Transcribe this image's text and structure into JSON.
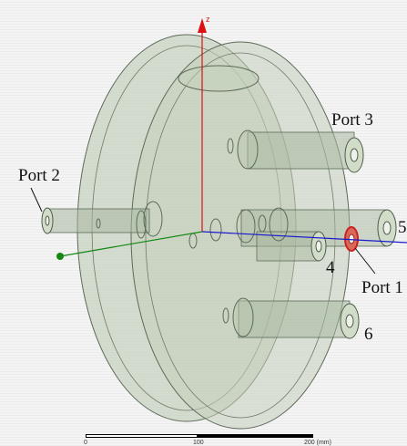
{
  "viewport": {
    "background_color": "#f2f2f2",
    "model_fill_color": "#b9c7b0",
    "model_edge_color": "#5c6b58",
    "highlight_color": "#cc2222",
    "axis_colors": {
      "x": "#1a1acc",
      "y": "#118811",
      "z": "#dd1111"
    },
    "axis_z_label": "z"
  },
  "labels": {
    "port1": "Port 1",
    "port2": "Port 2",
    "port3": "Port 3",
    "num4": "4",
    "num5": "5",
    "num6": "6"
  },
  "scale_bar": {
    "tick_start": "0",
    "tick_mid": "100",
    "tick_end": "200 (mm)"
  }
}
